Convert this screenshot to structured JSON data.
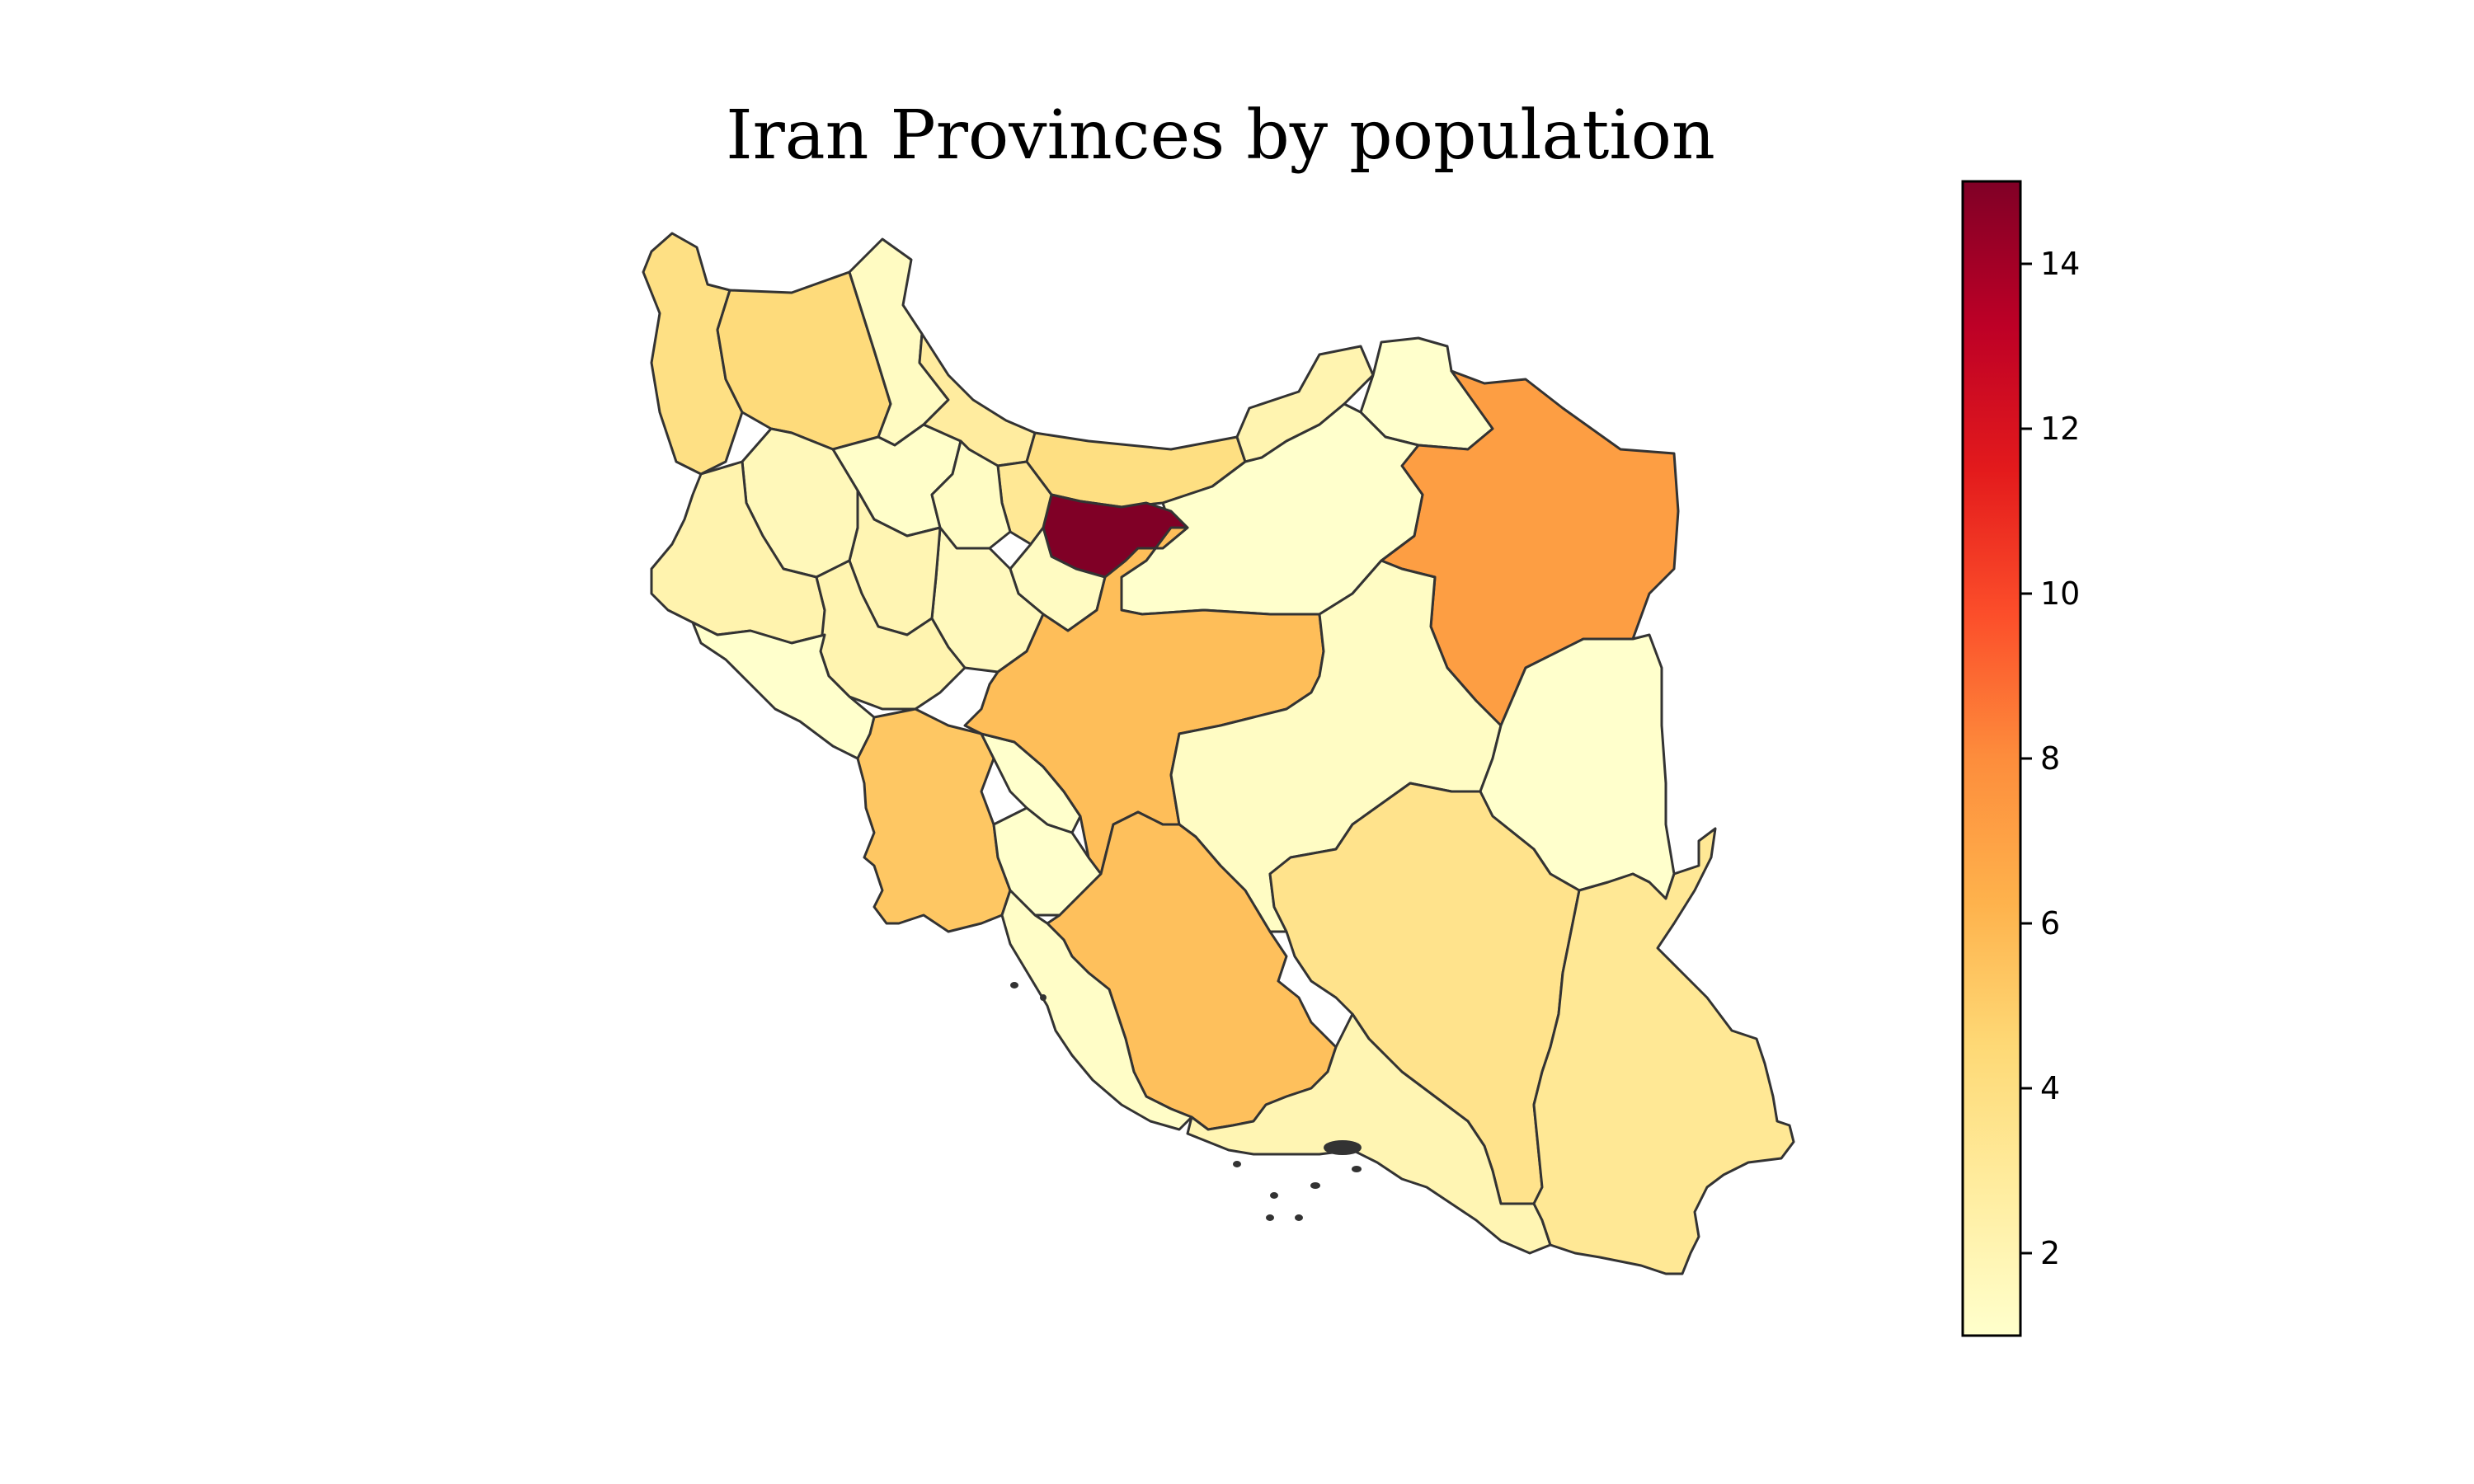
{
  "chart_data": {
    "type": "choropleth",
    "title": "Iran Provinces by population",
    "colormap": "YlOrRd",
    "colorbar": {
      "vmin": 1,
      "vmax": 15,
      "ticks": [
        2,
        4,
        6,
        8,
        10,
        12,
        14
      ],
      "stops": [
        "#ffffcc",
        "#ffeda0",
        "#fed976",
        "#feb24c",
        "#fd8d3c",
        "#fc4e2a",
        "#e31a1c",
        "#bd0026",
        "#800026"
      ]
    },
    "regions": [
      {
        "name": "tehran",
        "value": 15.0
      },
      {
        "name": "razavi-khorasan",
        "value": 7.2
      },
      {
        "name": "isfahan",
        "value": 5.7
      },
      {
        "name": "fars",
        "value": 5.6
      },
      {
        "name": "khuzestan",
        "value": 5.3
      },
      {
        "name": "east-azerbaijan",
        "value": 4.3
      },
      {
        "name": "mazandaran",
        "value": 4.0
      },
      {
        "name": "west-azerbaijan",
        "value": 3.9
      },
      {
        "name": "kerman",
        "value": 3.6
      },
      {
        "name": "sistan-baluchestan",
        "value": 3.2
      },
      {
        "name": "alborz",
        "value": 3.2
      },
      {
        "name": "gilan",
        "value": 2.8
      },
      {
        "name": "kermanshah",
        "value": 2.2
      },
      {
        "name": "lorestan",
        "value": 2.1
      },
      {
        "name": "hamadan",
        "value": 2.0
      },
      {
        "name": "golestan",
        "value": 2.1
      },
      {
        "name": "hormozgan",
        "value": 2.0
      },
      {
        "name": "kurdistan",
        "value": 1.7
      },
      {
        "name": "markazi",
        "value": 1.6
      },
      {
        "name": "ardabil",
        "value": 1.4
      },
      {
        "name": "qom",
        "value": 1.4
      },
      {
        "name": "yazd",
        "value": 1.3
      },
      {
        "name": "qazvin",
        "value": 1.3
      },
      {
        "name": "zanjan",
        "value": 1.1
      },
      {
        "name": "chaharmahal-bakhtiari",
        "value": 1.0
      },
      {
        "name": "bushehr",
        "value": 1.2
      },
      {
        "name": "south-khorasan",
        "value": 1.0
      },
      {
        "name": "north-khorasan",
        "value": 1.0
      },
      {
        "name": "ilam",
        "value": 0.9
      },
      {
        "name": "kohgiluyeh-boyer-ahmad",
        "value": 0.8
      },
      {
        "name": "semnan",
        "value": 0.8
      }
    ]
  }
}
